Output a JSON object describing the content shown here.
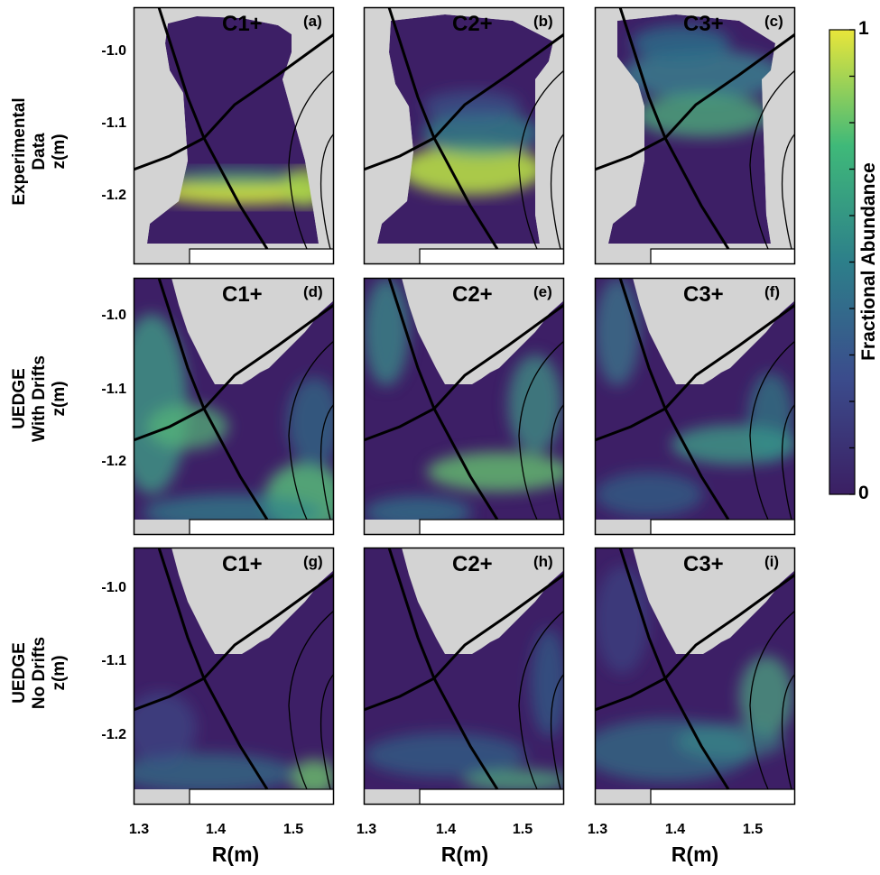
{
  "colors": {
    "background_low": "#3d1f66",
    "mid": "#2a8a8a",
    "high": "#e8e43a",
    "wall": "#d2d2d2",
    "separatrix": "#000000"
  },
  "colorbar": {
    "label": "Fractional Abundance",
    "min_label": "0",
    "max_label": "1",
    "colormap": "viridis"
  },
  "chart_data": {
    "type": "heatmap",
    "xlabel": "R(m)",
    "ylabel": "z(m)",
    "x_ticks": [
      "1.3",
      "1.4",
      "1.5"
    ],
    "y_ticks": [
      "-1.0",
      "-1.1",
      "-1.2"
    ],
    "xlim": [
      1.3,
      1.56
    ],
    "ylim": [
      -1.29,
      -0.95
    ],
    "rows": [
      {
        "label_line1": "Experimental",
        "label_line2": "Data",
        "axis_label": "z(m)"
      },
      {
        "label_line1": "UEDGE",
        "label_line2": "With Drifts",
        "axis_label": "z(m)"
      },
      {
        "label_line1": "UEDGE",
        "label_line2": "No Drifts",
        "axis_label": "z(m)"
      }
    ],
    "panels": [
      {
        "id": "a",
        "letter": "(a)",
        "species": "C1+",
        "row": 0,
        "col": 0
      },
      {
        "id": "b",
        "letter": "(b)",
        "species": "C2+",
        "row": 0,
        "col": 1
      },
      {
        "id": "c",
        "letter": "(c)",
        "species": "C3+",
        "row": 0,
        "col": 2
      },
      {
        "id": "d",
        "letter": "(d)",
        "species": "C1+",
        "row": 1,
        "col": 0
      },
      {
        "id": "e",
        "letter": "(e)",
        "species": "C2+",
        "row": 1,
        "col": 1
      },
      {
        "id": "f",
        "letter": "(f)",
        "species": "C3+",
        "row": 1,
        "col": 2
      },
      {
        "id": "g",
        "letter": "(g)",
        "species": "C1+",
        "row": 2,
        "col": 0
      },
      {
        "id": "h",
        "letter": "(h)",
        "species": "C2+",
        "row": 2,
        "col": 1
      },
      {
        "id": "i",
        "letter": "(i)",
        "species": "C3+",
        "row": 2,
        "col": 2
      }
    ]
  }
}
